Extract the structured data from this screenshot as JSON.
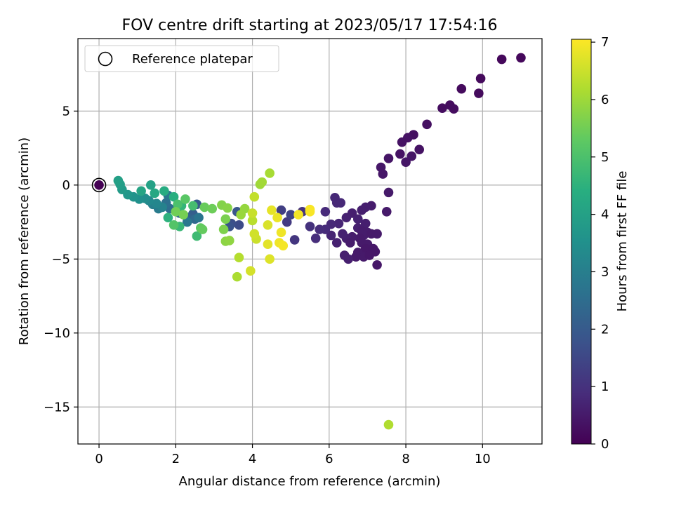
{
  "chart_data": {
    "type": "scatter",
    "title": "FOV centre drift starting at 2023/05/17 17:54:16",
    "xlabel": "Angular distance from reference (arcmin)",
    "ylabel": "Rotation from reference (arcmin)",
    "colorbar_label": "Hours from first FF file",
    "xlim": [
      -0.55,
      11.55
    ],
    "ylim": [
      -17.5,
      9.9
    ],
    "xticks": [
      0,
      2,
      4,
      6,
      8,
      10
    ],
    "yticks": [
      5,
      0,
      -5,
      -10,
      -15
    ],
    "xtick_labels": [
      "0",
      "2",
      "4",
      "6",
      "8",
      "10"
    ],
    "ytick_labels": [
      "5",
      "0",
      "−5",
      "−10",
      "−15"
    ],
    "colorbar_ticks": [
      0,
      1,
      2,
      3,
      4,
      5,
      6,
      7
    ],
    "colorbar_tick_labels": [
      "0",
      "1",
      "2",
      "3",
      "4",
      "5",
      "6",
      "7"
    ],
    "colorbar_range": [
      0,
      7.05
    ],
    "colormap": "viridis",
    "grid": true,
    "legend_position": "top-left",
    "legend_entries": [
      "Reference platepar"
    ],
    "reference_point": {
      "x": 0,
      "y": 0
    },
    "points": [
      {
        "x": 11.0,
        "y": 8.6,
        "c": 0.15
      },
      {
        "x": 10.5,
        "y": 8.5,
        "c": 0.15
      },
      {
        "x": 9.95,
        "y": 7.2,
        "c": 0.18
      },
      {
        "x": 9.9,
        "y": 6.2,
        "c": 0.2
      },
      {
        "x": 9.45,
        "y": 6.5,
        "c": 0.2
      },
      {
        "x": 9.15,
        "y": 5.4,
        "c": 0.25
      },
      {
        "x": 9.25,
        "y": 5.15,
        "c": 0.25
      },
      {
        "x": 8.95,
        "y": 5.2,
        "c": 0.25
      },
      {
        "x": 8.55,
        "y": 4.1,
        "c": 0.3
      },
      {
        "x": 8.2,
        "y": 3.4,
        "c": 0.3
      },
      {
        "x": 8.05,
        "y": 3.2,
        "c": 0.35
      },
      {
        "x": 7.9,
        "y": 2.9,
        "c": 0.35
      },
      {
        "x": 8.35,
        "y": 2.4,
        "c": 0.35
      },
      {
        "x": 7.85,
        "y": 2.1,
        "c": 0.35
      },
      {
        "x": 8.15,
        "y": 1.95,
        "c": 0.4
      },
      {
        "x": 7.55,
        "y": 1.8,
        "c": 0.4
      },
      {
        "x": 8.0,
        "y": 1.55,
        "c": 0.4
      },
      {
        "x": 7.35,
        "y": 1.2,
        "c": 0.45
      },
      {
        "x": 7.4,
        "y": 0.75,
        "c": 0.45
      },
      {
        "x": 7.55,
        "y": -0.5,
        "c": 0.5
      },
      {
        "x": 7.5,
        "y": -1.8,
        "c": 0.5
      },
      {
        "x": 7.1,
        "y": -1.4,
        "c": 0.55
      },
      {
        "x": 6.95,
        "y": -1.5,
        "c": 0.6
      },
      {
        "x": 6.85,
        "y": -1.7,
        "c": 0.6
      },
      {
        "x": 6.6,
        "y": -1.9,
        "c": 0.6
      },
      {
        "x": 6.45,
        "y": -2.2,
        "c": 0.65
      },
      {
        "x": 6.75,
        "y": -2.3,
        "c": 0.65
      },
      {
        "x": 6.95,
        "y": -2.6,
        "c": 0.6
      },
      {
        "x": 6.75,
        "y": -2.9,
        "c": 0.6
      },
      {
        "x": 6.85,
        "y": -3.1,
        "c": 0.55
      },
      {
        "x": 7.0,
        "y": -3.2,
        "c": 0.55
      },
      {
        "x": 6.9,
        "y": -3.4,
        "c": 0.55
      },
      {
        "x": 7.1,
        "y": -3.3,
        "c": 0.5
      },
      {
        "x": 7.25,
        "y": -3.3,
        "c": 0.5
      },
      {
        "x": 6.8,
        "y": -3.6,
        "c": 0.5
      },
      {
        "x": 6.6,
        "y": -3.5,
        "c": 0.55
      },
      {
        "x": 6.45,
        "y": -3.6,
        "c": 0.6
      },
      {
        "x": 6.35,
        "y": -3.3,
        "c": 0.65
      },
      {
        "x": 6.55,
        "y": -3.9,
        "c": 0.55
      },
      {
        "x": 6.85,
        "y": -3.9,
        "c": 0.5
      },
      {
        "x": 7.0,
        "y": -4.0,
        "c": 0.5
      },
      {
        "x": 6.95,
        "y": -4.3,
        "c": 0.45
      },
      {
        "x": 7.15,
        "y": -4.3,
        "c": 0.45
      },
      {
        "x": 7.2,
        "y": -4.5,
        "c": 0.45
      },
      {
        "x": 6.75,
        "y": -4.55,
        "c": 0.5
      },
      {
        "x": 6.9,
        "y": -4.85,
        "c": 0.5
      },
      {
        "x": 7.05,
        "y": -4.75,
        "c": 0.45
      },
      {
        "x": 6.7,
        "y": -4.85,
        "c": 0.5
      },
      {
        "x": 7.25,
        "y": -5.4,
        "c": 0.45
      },
      {
        "x": 6.4,
        "y": -4.75,
        "c": 0.6
      },
      {
        "x": 6.5,
        "y": -5.0,
        "c": 0.6
      },
      {
        "x": 6.2,
        "y": -3.9,
        "c": 0.65
      },
      {
        "x": 6.05,
        "y": -3.4,
        "c": 0.7
      },
      {
        "x": 6.25,
        "y": -2.6,
        "c": 0.75
      },
      {
        "x": 6.05,
        "y": -2.65,
        "c": 0.8
      },
      {
        "x": 5.9,
        "y": -3.0,
        "c": 0.85
      },
      {
        "x": 5.75,
        "y": -3.0,
        "c": 0.9
      },
      {
        "x": 5.65,
        "y": -3.6,
        "c": 0.9
      },
      {
        "x": 6.15,
        "y": -0.85,
        "c": 0.8
      },
      {
        "x": 6.2,
        "y": -1.2,
        "c": 0.8
      },
      {
        "x": 6.3,
        "y": -1.2,
        "c": 0.8
      },
      {
        "x": 5.9,
        "y": -1.8,
        "c": 0.85
      },
      {
        "x": 5.5,
        "y": -2.8,
        "c": 1.0
      },
      {
        "x": 5.3,
        "y": -1.8,
        "c": 1.05
      },
      {
        "x": 5.1,
        "y": -3.7,
        "c": 1.1
      },
      {
        "x": 4.9,
        "y": -2.5,
        "c": 1.2
      },
      {
        "x": 4.75,
        "y": -1.7,
        "c": 1.3
      },
      {
        "x": 5.0,
        "y": -2.0,
        "c": 1.4
      },
      {
        "x": 3.65,
        "y": -2.7,
        "c": 1.6
      },
      {
        "x": 3.45,
        "y": -2.6,
        "c": 1.7
      },
      {
        "x": 3.4,
        "y": -2.8,
        "c": 1.8
      },
      {
        "x": 3.6,
        "y": -1.8,
        "c": 1.9
      },
      {
        "x": 2.55,
        "y": -1.3,
        "c": 2.0
      },
      {
        "x": 2.45,
        "y": -1.95,
        "c": 2.1
      },
      {
        "x": 2.3,
        "y": -2.2,
        "c": 2.2
      },
      {
        "x": 2.1,
        "y": -1.9,
        "c": 2.3
      },
      {
        "x": 2.5,
        "y": -2.3,
        "c": 2.4
      },
      {
        "x": 1.85,
        "y": -1.6,
        "c": 2.5
      },
      {
        "x": 1.75,
        "y": -1.2,
        "c": 2.6
      },
      {
        "x": 2.6,
        "y": -2.2,
        "c": 2.7
      },
      {
        "x": 2.3,
        "y": -2.5,
        "c": 2.8
      },
      {
        "x": 1.8,
        "y": -0.7,
        "c": 2.8
      },
      {
        "x": 1.55,
        "y": -1.6,
        "c": 2.9
      },
      {
        "x": 1.4,
        "y": -1.3,
        "c": 3.0
      },
      {
        "x": 1.65,
        "y": -1.5,
        "c": 3.1
      },
      {
        "x": 1.5,
        "y": -1.25,
        "c": 3.2
      },
      {
        "x": 1.3,
        "y": -1.05,
        "c": 3.3
      },
      {
        "x": 1.2,
        "y": -0.9,
        "c": 3.4
      },
      {
        "x": 1.05,
        "y": -0.95,
        "c": 3.5
      },
      {
        "x": 0.9,
        "y": -0.8,
        "c": 3.6
      },
      {
        "x": 0.75,
        "y": -0.65,
        "c": 3.7
      },
      {
        "x": 0.6,
        "y": -0.3,
        "c": 3.8
      },
      {
        "x": 0.55,
        "y": 0.05,
        "c": 3.9
      },
      {
        "x": 0.5,
        "y": 0.3,
        "c": 3.95
      },
      {
        "x": 1.35,
        "y": 0.0,
        "c": 4.0
      },
      {
        "x": 1.1,
        "y": -0.4,
        "c": 4.1
      },
      {
        "x": 1.45,
        "y": -0.55,
        "c": 4.2
      },
      {
        "x": 1.7,
        "y": -0.4,
        "c": 4.3
      },
      {
        "x": 1.95,
        "y": -0.8,
        "c": 4.4
      },
      {
        "x": 1.8,
        "y": -2.2,
        "c": 4.5
      },
      {
        "x": 2.15,
        "y": -1.4,
        "c": 4.6
      },
      {
        "x": 2.1,
        "y": -2.8,
        "c": 4.7
      },
      {
        "x": 2.55,
        "y": -3.45,
        "c": 4.8
      },
      {
        "x": 2.45,
        "y": -1.4,
        "c": 4.9
      },
      {
        "x": 2.05,
        "y": -1.3,
        "c": 5.0
      },
      {
        "x": 1.95,
        "y": -2.7,
        "c": 5.1
      },
      {
        "x": 2.25,
        "y": -0.95,
        "c": 5.2
      },
      {
        "x": 2.65,
        "y": -2.9,
        "c": 5.3
      },
      {
        "x": 2.7,
        "y": -3.0,
        "c": 5.35
      },
      {
        "x": 2.75,
        "y": -1.5,
        "c": 5.4
      },
      {
        "x": 2.95,
        "y": -1.6,
        "c": 5.45
      },
      {
        "x": 2.0,
        "y": -1.8,
        "c": 5.5
      },
      {
        "x": 2.2,
        "y": -2.0,
        "c": 5.55
      },
      {
        "x": 3.3,
        "y": -2.3,
        "c": 5.6
      },
      {
        "x": 3.25,
        "y": -3.0,
        "c": 5.65
      },
      {
        "x": 3.2,
        "y": -1.35,
        "c": 5.7
      },
      {
        "x": 3.35,
        "y": -1.55,
        "c": 5.75
      },
      {
        "x": 3.3,
        "y": -3.8,
        "c": 5.8
      },
      {
        "x": 3.4,
        "y": -3.75,
        "c": 5.85
      },
      {
        "x": 3.8,
        "y": -1.6,
        "c": 5.9
      },
      {
        "x": 3.7,
        "y": -2.0,
        "c": 5.95
      },
      {
        "x": 4.2,
        "y": 0.05,
        "c": 6.0
      },
      {
        "x": 4.25,
        "y": 0.2,
        "c": 6.05
      },
      {
        "x": 4.45,
        "y": 0.8,
        "c": 6.1
      },
      {
        "x": 3.6,
        "y": -6.2,
        "c": 6.15
      },
      {
        "x": 7.55,
        "y": -16.2,
        "c": 6.2
      },
      {
        "x": 3.65,
        "y": -4.9,
        "c": 6.25
      },
      {
        "x": 4.0,
        "y": -2.4,
        "c": 6.3
      },
      {
        "x": 4.05,
        "y": -0.8,
        "c": 6.4
      },
      {
        "x": 4.0,
        "y": -1.9,
        "c": 6.45
      },
      {
        "x": 4.1,
        "y": -3.65,
        "c": 6.5
      },
      {
        "x": 4.05,
        "y": -3.3,
        "c": 6.55
      },
      {
        "x": 3.95,
        "y": -5.8,
        "c": 6.6
      },
      {
        "x": 4.4,
        "y": -2.7,
        "c": 6.65
      },
      {
        "x": 4.45,
        "y": -5.0,
        "c": 6.7
      },
      {
        "x": 4.4,
        "y": -4.0,
        "c": 6.75
      },
      {
        "x": 4.5,
        "y": -1.7,
        "c": 6.8
      },
      {
        "x": 4.65,
        "y": -2.2,
        "c": 6.85
      },
      {
        "x": 4.7,
        "y": -3.9,
        "c": 6.9
      },
      {
        "x": 4.75,
        "y": -3.2,
        "c": 6.9
      },
      {
        "x": 4.8,
        "y": -4.1,
        "c": 6.95
      },
      {
        "x": 5.2,
        "y": -2.0,
        "c": 6.95
      },
      {
        "x": 5.5,
        "y": -1.65,
        "c": 7.0
      },
      {
        "x": 5.5,
        "y": -1.8,
        "c": 7.0
      }
    ]
  }
}
